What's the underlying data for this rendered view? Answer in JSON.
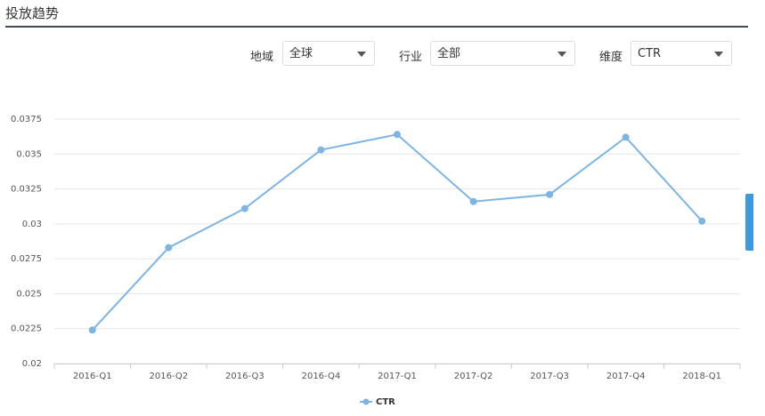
{
  "header": {
    "title": "投放趋势"
  },
  "filters": [
    {
      "label": "地域",
      "value": "全球"
    },
    {
      "label": "行业",
      "value": "全部"
    },
    {
      "label": "维度",
      "value": "CTR"
    }
  ],
  "chart_data": {
    "type": "line",
    "categories": [
      "2016-Q1",
      "2016-Q2",
      "2016-Q3",
      "2016-Q4",
      "2017-Q1",
      "2017-Q2",
      "2017-Q3",
      "2017-Q4",
      "2018-Q1"
    ],
    "series": [
      {
        "name": "CTR",
        "color": "#7cb5e4",
        "values": [
          0.0224,
          0.0283,
          0.0311,
          0.0353,
          0.0364,
          0.0316,
          0.0321,
          0.0362,
          0.0302
        ]
      }
    ],
    "ylim": [
      0.02,
      0.0375
    ],
    "yticks": [
      0.02,
      0.0225,
      0.025,
      0.0275,
      0.03,
      0.0325,
      0.035,
      0.0375
    ],
    "grid": true
  }
}
